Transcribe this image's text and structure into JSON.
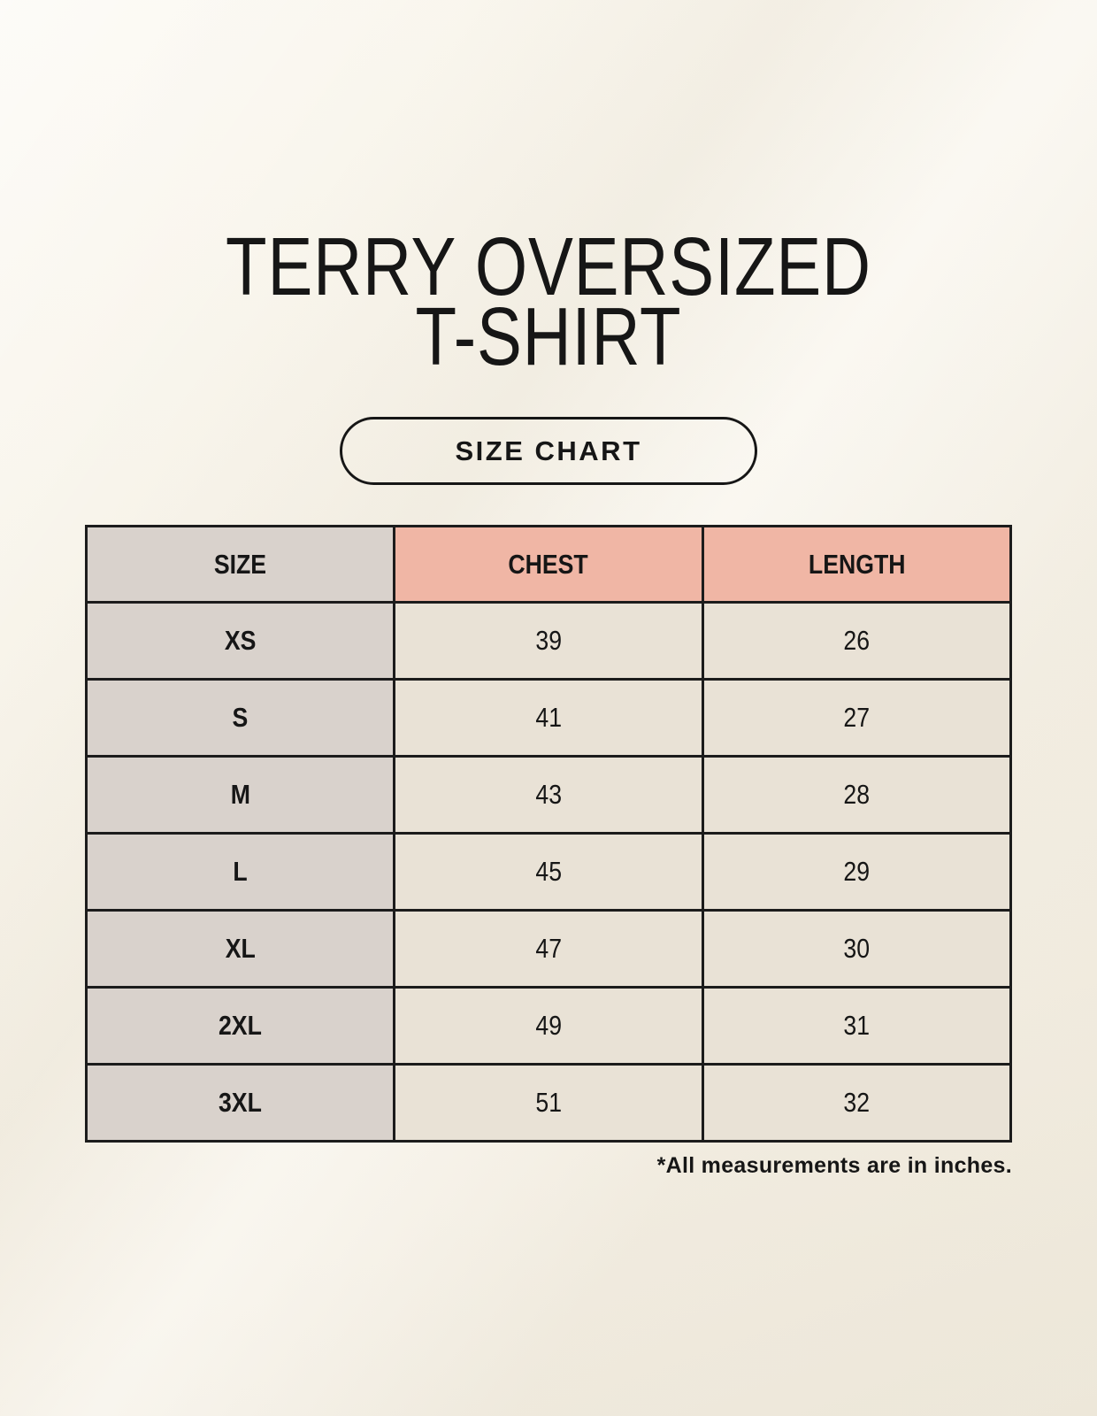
{
  "page": {
    "title_line1": "TERRY OVERSIZED",
    "title_line2": "T-SHIRT",
    "badge_label": "SIZE CHART",
    "footnote": "*All measurements are in inches."
  },
  "table": {
    "headers": [
      "SIZE",
      "CHEST",
      "LENGTH"
    ],
    "rows": [
      {
        "size": "XS",
        "chest": "39",
        "length": "26"
      },
      {
        "size": "S",
        "chest": "41",
        "length": "27"
      },
      {
        "size": "M",
        "chest": "43",
        "length": "28"
      },
      {
        "size": "L",
        "chest": "45",
        "length": "29"
      },
      {
        "size": "XL",
        "chest": "47",
        "length": "30"
      },
      {
        "size": "2XL",
        "chest": "49",
        "length": "31"
      },
      {
        "size": "3XL",
        "chest": "51",
        "length": "32"
      }
    ],
    "units_note": "inches"
  },
  "colors": {
    "background": "#f8f4eb",
    "text": "#161616",
    "border": "#1c1c1c",
    "header_label_bg": "#d9d2cc",
    "header_measure_bg": "#f0b6a5",
    "row_label_bg": "#d9d2cc",
    "row_value_bg": "#e9e2d6"
  }
}
